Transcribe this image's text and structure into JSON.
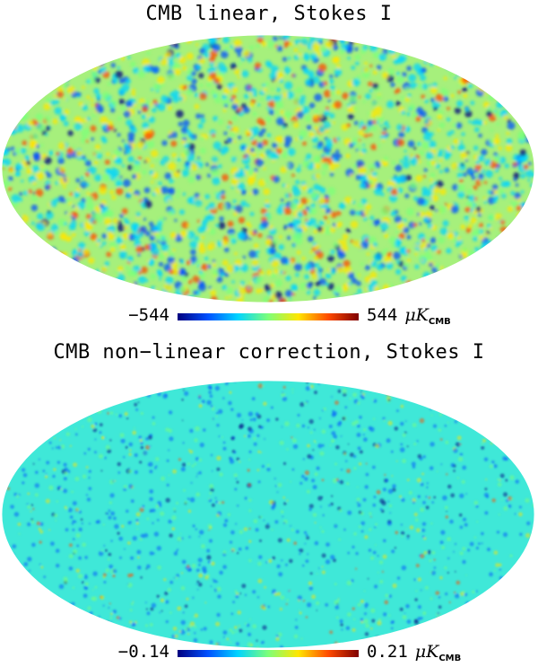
{
  "panels": [
    {
      "title": "CMB linear, Stokes I",
      "colorbar": {
        "min_label": "−544",
        "max_label": "544",
        "unit_main": "μK",
        "unit_sub": "CMB"
      },
      "palette": [
        "#00007f",
        "#0050ff",
        "#00d4ff",
        "#7cff79",
        "#ffe600",
        "#ff4a00",
        "#7f0000"
      ],
      "base_color": "#a6f07c"
    },
    {
      "title": "CMB non−linear correction, Stokes I",
      "colorbar": {
        "min_label": "−0.14",
        "max_label": "0.21",
        "unit_main": "μK",
        "unit_sub": "CMB"
      },
      "palette": [
        "#00007f",
        "#0050ff",
        "#00d4ff",
        "#7cff79",
        "#ffe600",
        "#ff4a00",
        "#7f0000"
      ],
      "base_color": "#3fe8d8"
    }
  ]
}
